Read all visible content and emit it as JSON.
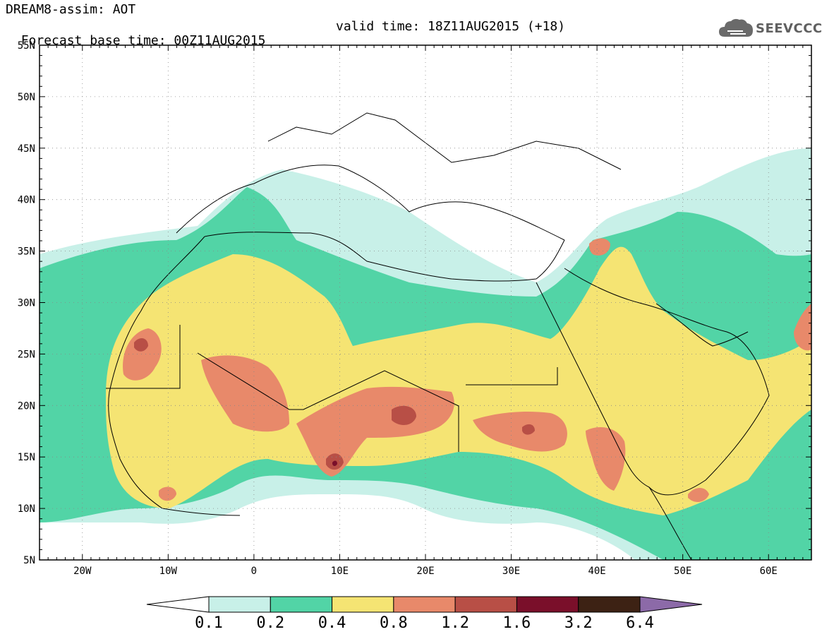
{
  "header": {
    "title": "DREAM8-assim: AOT",
    "forecast_base": "Forecast base time: 00Z11AUG2015",
    "valid_time": "valid time: 18Z11AUG2015 (+18)"
  },
  "logo": {
    "text": "SEEVCCC",
    "icon": "cloud-icon"
  },
  "axes": {
    "lat_labels": [
      "55N",
      "50N",
      "45N",
      "40N",
      "35N",
      "30N",
      "25N",
      "20N",
      "15N",
      "10N",
      "5N"
    ],
    "lon_labels": [
      "20W",
      "10W",
      "0",
      "10E",
      "20E",
      "30E",
      "40E",
      "50E",
      "60E"
    ],
    "lat_range": [
      5,
      55
    ],
    "lon_range": [
      -25,
      65
    ],
    "grid": "dotted"
  },
  "colorbar": {
    "levels": [
      "0.1",
      "0.2",
      "0.4",
      "0.8",
      "1.2",
      "1.6",
      "3.2",
      "6.4"
    ],
    "colors": [
      "#ffffff",
      "#c8f0e8",
      "#52d4a6",
      "#f5e473",
      "#e8896a",
      "#b84f46",
      "#7a0f2a",
      "#3d2214",
      "#8c6aa8"
    ]
  },
  "field_colors": {
    "c01": "#c8f0e8",
    "c02": "#52d4a6",
    "c04": "#f5e473",
    "c08": "#e8896a",
    "c12": "#b84f46",
    "c16": "#7a0f2a"
  }
}
